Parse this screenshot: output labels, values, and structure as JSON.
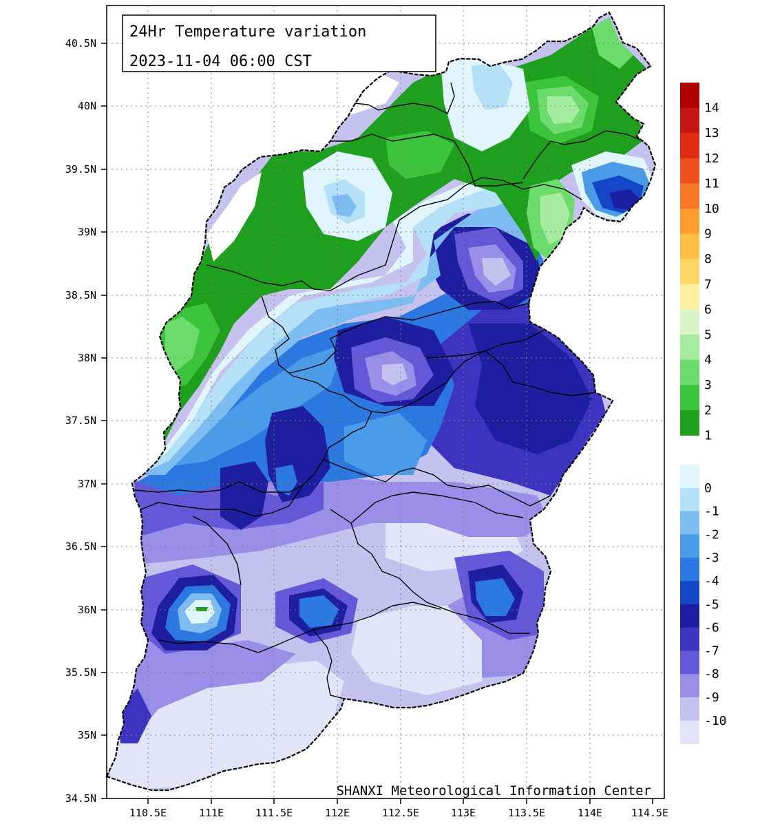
{
  "title": {
    "line1": "24Hr Temperature variation",
    "line2": "2023-11-04 06:00 CST"
  },
  "credit": "SHANXI Meteorological Information Center",
  "axes": {
    "lat_labels": [
      "40.5N",
      "40N",
      "39.5N",
      "39N",
      "38.5N",
      "38N",
      "37.5N",
      "37N",
      "36.5N",
      "36N",
      "35.5N",
      "35N",
      "34.5N"
    ],
    "lon_labels": [
      "110.5E",
      "111E",
      "111.5E",
      "112E",
      "112.5E",
      "113E",
      "113.5E",
      "114E",
      "114.5E"
    ]
  },
  "legend": {
    "warm": [
      {
        "label": "14",
        "color": "#b00000"
      },
      {
        "label": "13",
        "color": "#c81414"
      },
      {
        "label": "12",
        "color": "#e02c14"
      },
      {
        "label": "11",
        "color": "#f0501e"
      },
      {
        "label": "10",
        "color": "#f87828"
      },
      {
        "label": "9",
        "color": "#ff9c32"
      },
      {
        "label": "8",
        "color": "#ffbe46"
      },
      {
        "label": "7",
        "color": "#ffd764"
      },
      {
        "label": "6",
        "color": "#fff0a0"
      },
      {
        "label": "5",
        "color": "#d8f5c8"
      },
      {
        "label": "4",
        "color": "#a6eca0"
      },
      {
        "label": "3",
        "color": "#6cdc6c"
      },
      {
        "label": "2",
        "color": "#3cc43c"
      },
      {
        "label": "1",
        "color": "#1ea01e"
      }
    ],
    "cold": [
      {
        "label": "0",
        "color": "#e0f6fc"
      },
      {
        "label": "-1",
        "color": "#b4e0f8"
      },
      {
        "label": "-2",
        "color": "#7cbcf0"
      },
      {
        "label": "-3",
        "color": "#4a9ce8"
      },
      {
        "label": "-4",
        "color": "#2a78e0"
      },
      {
        "label": "-5",
        "color": "#1446c8"
      },
      {
        "label": "-6",
        "color": "#1e1ea0"
      },
      {
        "label": "-7",
        "color": "#3c34c0"
      },
      {
        "label": "-8",
        "color": "#6458d8"
      },
      {
        "label": "-9",
        "color": "#9a8ee8"
      },
      {
        "label": "-10",
        "color": "#c6c2f0"
      },
      {
        "label": "",
        "color": "#e4e4f8"
      }
    ]
  },
  "colors": {
    "green_dark": "#1ea01e",
    "green_mid": "#3cc43c",
    "green_light": "#6cdc6c",
    "green_pale": "#a6eca0",
    "ice": "#e0f6fc",
    "blue1": "#b4e0f8",
    "blue2": "#7cbcf0",
    "blue3": "#4a9ce8",
    "blue4": "#2a78e0",
    "blue5": "#1446c8",
    "navy": "#1e1ea0",
    "indigo": "#3c34c0",
    "violet": "#6458d8",
    "lavender": "#9a8ee8",
    "pale_lavender": "#c6c2f0",
    "palest": "#e4e4f8"
  }
}
